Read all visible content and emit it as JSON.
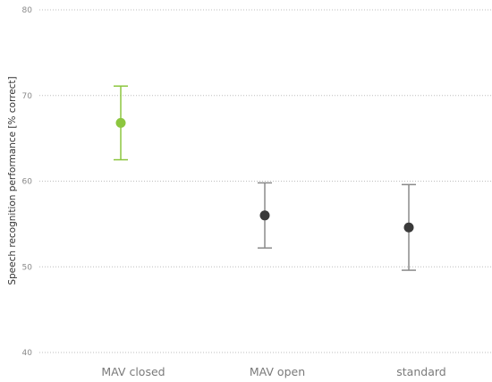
{
  "chart_data": {
    "type": "scatter",
    "ylabel": "Speech recognition performance [% correct]",
    "xlabel": "",
    "ylim": [
      40,
      80
    ],
    "yticks": [
      40,
      50,
      60,
      70,
      80
    ],
    "grid": true,
    "categories": [
      "MAV closed",
      "MAV open",
      "standard"
    ],
    "points": [
      {
        "category": "MAV closed",
        "value": 66.8,
        "err_low": 62.5,
        "err_high": 71.1,
        "color": "#8cc63f",
        "errbar_color": "#8cc63f"
      },
      {
        "category": "MAV open",
        "value": 56.0,
        "err_low": 52.2,
        "err_high": 59.8,
        "color": "#3a3a3a",
        "errbar_color": "#8a8a8a"
      },
      {
        "category": "standard",
        "value": 54.6,
        "err_low": 49.6,
        "err_high": 59.6,
        "color": "#3a3a3a",
        "errbar_color": "#8a8a8a"
      }
    ]
  }
}
